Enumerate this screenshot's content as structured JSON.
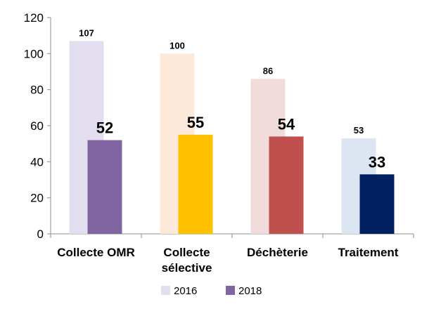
{
  "chart_data": {
    "type": "bar",
    "categories": [
      "Collecte OMR",
      "Collecte\nsélective",
      "Déchèterie",
      "Traitement"
    ],
    "series": [
      {
        "name": "2016",
        "values": [
          107,
          100,
          86,
          53
        ],
        "colors": [
          "#e4dff0",
          "#fde9d9",
          "#f2dcdb",
          "#dce6f2"
        ]
      },
      {
        "name": "2018",
        "values": [
          52,
          55,
          54,
          33
        ],
        "colors": [
          "#8064a2",
          "#ffc000",
          "#c0504d",
          "#002060"
        ]
      }
    ],
    "legend": [
      {
        "label": "2016",
        "color": "#e4dff0"
      },
      {
        "label": "2018",
        "color": "#8064a2"
      }
    ],
    "ylim": [
      0,
      120
    ],
    "yticks": [
      0,
      20,
      40,
      60,
      80,
      100,
      120
    ],
    "grid": false,
    "legend_position": "bottom",
    "title": "",
    "xlabel": "",
    "ylabel": ""
  }
}
